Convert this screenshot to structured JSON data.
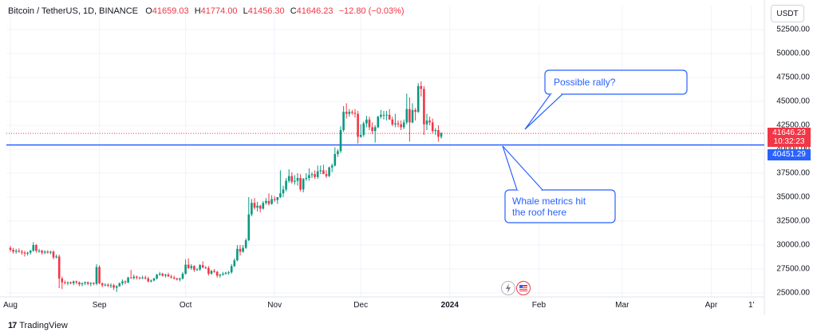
{
  "legend": {
    "symbol": "Bitcoin / TetherUS, 1D, BINANCE",
    "o_label": "O",
    "o_value": "41659.03",
    "h_label": "H",
    "h_value": "41774.00",
    "l_label": "L",
    "l_value": "41456.30",
    "c_label": "C",
    "c_value": "41646.23",
    "change": "−12.80 (−0.03%)"
  },
  "currency_button": "USDT",
  "current_price": {
    "value": "41646.23",
    "countdown": "10:32:23",
    "color": "#f23645"
  },
  "line_price": {
    "value": "40451.29",
    "color": "#2962ff"
  },
  "callouts": {
    "rally": "Possible rally?",
    "whale_line1": "Whale metrics hit",
    "whale_line2": "the roof here"
  },
  "footer": {
    "brand": "TradingView"
  },
  "icons": {
    "lightning": "lightning-icon",
    "flag": "us-flag-icon"
  },
  "colors": {
    "up": "#089981",
    "down": "#f23645",
    "line": "#2962ff",
    "grid": "#f0f3fa"
  },
  "chart_data": {
    "type": "candlestick",
    "title": "",
    "ylim": [
      25000,
      53000
    ],
    "yticks": [
      "52500.00",
      "50000.00",
      "47500.00",
      "45000.00",
      "42500.00",
      "40000.00",
      "37500.00",
      "35000.00",
      "32500.00",
      "30000.00",
      "27500.00",
      "25000.00"
    ],
    "ytick_values": [
      52500,
      50000,
      47500,
      45000,
      42500,
      40000,
      37500,
      35000,
      32500,
      30000,
      27500,
      25000
    ],
    "xticks": [
      {
        "label": "Aug",
        "day": 0,
        "bold": false
      },
      {
        "label": "Sep",
        "day": 31,
        "bold": false
      },
      {
        "label": "Oct",
        "day": 61,
        "bold": false
      },
      {
        "label": "Nov",
        "day": 92,
        "bold": false
      },
      {
        "label": "Dec",
        "day": 122,
        "bold": false
      },
      {
        "label": "2024",
        "day": 153,
        "bold": true
      },
      {
        "label": "Feb",
        "day": 184,
        "bold": false
      },
      {
        "label": "Mar",
        "day": 213,
        "bold": false
      },
      {
        "label": "Apr",
        "day": 244,
        "bold": false
      },
      {
        "label": "1'",
        "day": 258,
        "bold": false
      }
    ],
    "horizontal_line": 40451.29,
    "candles": [
      [
        29700,
        29900,
        29300,
        29500
      ],
      [
        29500,
        29700,
        29100,
        29300
      ],
      [
        29300,
        29600,
        29100,
        29400
      ],
      [
        29400,
        29650,
        29200,
        29300
      ],
      [
        29300,
        29500,
        29000,
        29200
      ],
      [
        29200,
        29400,
        28800,
        29100
      ],
      [
        29100,
        29300,
        28900,
        29200
      ],
      [
        29200,
        29500,
        29000,
        29400
      ],
      [
        29400,
        30300,
        29300,
        30000
      ],
      [
        30000,
        30100,
        29200,
        29400
      ],
      [
        29400,
        29600,
        29200,
        29400
      ],
      [
        29400,
        29500,
        29000,
        29200
      ],
      [
        29200,
        29450,
        29050,
        29300
      ],
      [
        29300,
        29450,
        29100,
        29200
      ],
      [
        29200,
        29400,
        29050,
        29300
      ],
      [
        29300,
        29450,
        28500,
        28700
      ],
      [
        28700,
        29000,
        28600,
        28800
      ],
      [
        28800,
        29000,
        25500,
        26500
      ],
      [
        26500,
        26700,
        25400,
        26100
      ],
      [
        26100,
        26300,
        25900,
        26050
      ],
      [
        26050,
        26200,
        25800,
        26100
      ],
      [
        26100,
        26200,
        25900,
        26000
      ],
      [
        26000,
        26300,
        25800,
        26200
      ],
      [
        26200,
        26300,
        25900,
        26100
      ],
      [
        26100,
        26200,
        25700,
        25900
      ],
      [
        25900,
        26100,
        25700,
        26000
      ],
      [
        26000,
        26200,
        25800,
        26100
      ],
      [
        26100,
        26200,
        25800,
        25950
      ],
      [
        25950,
        26100,
        25700,
        26050
      ],
      [
        26050,
        26100,
        25800,
        25950
      ],
      [
        25950,
        28000,
        25800,
        27700
      ],
      [
        27700,
        27900,
        25900,
        26000
      ],
      [
        26000,
        26100,
        25600,
        25800
      ],
      [
        25800,
        26000,
        25700,
        25850
      ],
      [
        25850,
        26000,
        25600,
        25750
      ],
      [
        25750,
        26000,
        25500,
        25800
      ],
      [
        25800,
        25950,
        25300,
        25550
      ],
      [
        25550,
        25800,
        25100,
        25700
      ],
      [
        25700,
        26100,
        25650,
        26000
      ],
      [
        26000,
        26400,
        25800,
        26200
      ],
      [
        26200,
        26300,
        25900,
        26100
      ],
      [
        26100,
        26700,
        26000,
        26600
      ],
      [
        26600,
        27400,
        26500,
        26550
      ],
      [
        26550,
        26900,
        26400,
        26700
      ],
      [
        26700,
        26800,
        26400,
        26600
      ],
      [
        26600,
        26700,
        26400,
        26550
      ],
      [
        26550,
        26800,
        26450,
        26600
      ],
      [
        26600,
        26800,
        26400,
        26500
      ],
      [
        26500,
        26700,
        26100,
        26200
      ],
      [
        26200,
        26400,
        26100,
        26300
      ],
      [
        26300,
        26600,
        26200,
        26500
      ],
      [
        26500,
        27000,
        26400,
        26900
      ],
      [
        26900,
        27200,
        26800,
        27000
      ],
      [
        27000,
        27100,
        26700,
        26800
      ],
      [
        26800,
        27000,
        26600,
        26900
      ],
      [
        26900,
        27100,
        26700,
        26700
      ],
      [
        26700,
        26900,
        26500,
        26600
      ],
      [
        26600,
        26800,
        26400,
        26500
      ],
      [
        26500,
        26600,
        26300,
        26400
      ],
      [
        26400,
        26600,
        26200,
        26500
      ],
      [
        26500,
        27200,
        26400,
        27000
      ],
      [
        27000,
        28500,
        26900,
        27950
      ],
      [
        27950,
        28600,
        27500,
        27600
      ],
      [
        27600,
        28000,
        27400,
        27800
      ],
      [
        27800,
        27900,
        27200,
        27400
      ],
      [
        27400,
        27600,
        27300,
        27450
      ],
      [
        27450,
        28000,
        27300,
        27900
      ],
      [
        27900,
        28300,
        27600,
        27650
      ],
      [
        27650,
        27800,
        27500,
        27600
      ],
      [
        27600,
        27800,
        26800,
        27000
      ],
      [
        27000,
        27400,
        26900,
        27300
      ],
      [
        27300,
        27500,
        27100,
        27200
      ],
      [
        27200,
        27300,
        26600,
        26800
      ],
      [
        26800,
        27000,
        26600,
        26900
      ],
      [
        26900,
        27200,
        26800,
        27000
      ],
      [
        27000,
        27200,
        26900,
        27100
      ],
      [
        27100,
        27300,
        26900,
        27150
      ],
      [
        27150,
        28000,
        27000,
        27800
      ],
      [
        27800,
        28600,
        27700,
        28400
      ],
      [
        28400,
        30000,
        28300,
        29600
      ],
      [
        29600,
        30000,
        28900,
        29300
      ],
      [
        29300,
        30000,
        29200,
        29700
      ],
      [
        29700,
        30700,
        29600,
        30500
      ],
      [
        30500,
        35000,
        30400,
        33200
      ],
      [
        33200,
        34800,
        33000,
        34400
      ],
      [
        34400,
        34900,
        33700,
        33900
      ],
      [
        33900,
        34500,
        33500,
        34100
      ],
      [
        34100,
        34200,
        33400,
        33800
      ],
      [
        33800,
        34600,
        33700,
        34400
      ],
      [
        34400,
        34900,
        34200,
        34600
      ],
      [
        34600,
        35400,
        34100,
        34300
      ],
      [
        34300,
        35200,
        34200,
        34800
      ],
      [
        34800,
        35100,
        34500,
        34700
      ],
      [
        34700,
        35000,
        34300,
        35000
      ],
      [
        35000,
        37800,
        34900,
        35400
      ],
      [
        35400,
        36200,
        35000,
        35800
      ],
      [
        35800,
        37000,
        35600,
        36700
      ],
      [
        36700,
        37900,
        36500,
        37200
      ],
      [
        37200,
        37600,
        36400,
        36600
      ],
      [
        36600,
        37300,
        36300,
        36700
      ],
      [
        36700,
        37500,
        36200,
        37000
      ],
      [
        37000,
        37400,
        35600,
        35800
      ],
      [
        35800,
        37000,
        35500,
        36900
      ],
      [
        36900,
        37500,
        36700,
        37000
      ],
      [
        37000,
        38000,
        36700,
        37300
      ],
      [
        37300,
        37600,
        37000,
        37400
      ],
      [
        37400,
        37800,
        36900,
        37100
      ],
      [
        37100,
        38300,
        36900,
        37700
      ],
      [
        37700,
        38300,
        37400,
        37800
      ],
      [
        37800,
        38400,
        37600,
        37400
      ],
      [
        37400,
        37800,
        37000,
        37200
      ],
      [
        37200,
        38200,
        37100,
        38100
      ],
      [
        38100,
        38500,
        37600,
        38300
      ],
      [
        38300,
        40200,
        38200,
        39500
      ],
      [
        39500,
        40000,
        39200,
        39800
      ],
      [
        39800,
        42400,
        39600,
        42000
      ],
      [
        42000,
        44500,
        41800,
        43900
      ],
      [
        43900,
        44800,
        43200,
        43700
      ],
      [
        43700,
        44200,
        43400,
        43900
      ],
      [
        43900,
        44100,
        43600,
        43800
      ],
      [
        43800,
        44200,
        43300,
        43700
      ],
      [
        43700,
        44000,
        40600,
        41300
      ],
      [
        41300,
        42600,
        41200,
        41500
      ],
      [
        41500,
        42900,
        41300,
        42700
      ],
      [
        42700,
        43500,
        42300,
        43100
      ],
      [
        43100,
        43400,
        42000,
        42300
      ],
      [
        42300,
        42800,
        41600,
        41900
      ],
      [
        41900,
        42500,
        40700,
        42300
      ],
      [
        42300,
        43500,
        42200,
        43400
      ],
      [
        43400,
        44100,
        43200,
        43600
      ],
      [
        43600,
        44000,
        43100,
        43600
      ],
      [
        43600,
        44000,
        43000,
        43600
      ],
      [
        43600,
        44200,
        43100,
        43100
      ],
      [
        43100,
        43400,
        42400,
        42600
      ],
      [
        42600,
        43700,
        42300,
        42700
      ],
      [
        42700,
        43000,
        42300,
        42600
      ],
      [
        42600,
        43000,
        42000,
        42300
      ],
      [
        42300,
        43100,
        42100,
        42800
      ],
      [
        42800,
        45800,
        42600,
        44200
      ],
      [
        44200,
        45400,
        40800,
        42800
      ],
      [
        42800,
        44800,
        42700,
        44100
      ],
      [
        44100,
        44300,
        43000,
        43900
      ],
      [
        43900,
        46900,
        43800,
        46600
      ],
      [
        46600,
        47100,
        45500,
        46300
      ],
      [
        46300,
        46600,
        41500,
        42600
      ],
      [
        42600,
        43700,
        42000,
        43000
      ],
      [
        43000,
        43400,
        42500,
        42800
      ],
      [
        42800,
        43200,
        41700,
        41900
      ],
      [
        41900,
        42200,
        41500,
        42000
      ],
      [
        42000,
        42500,
        40800,
        41300
      ],
      [
        41300,
        41800,
        41100,
        41659
      ]
    ]
  }
}
